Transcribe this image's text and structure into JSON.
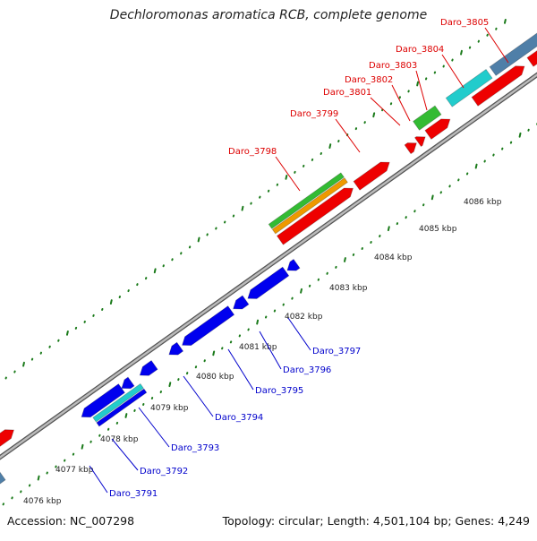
{
  "title": "Dechloromonas aromatica RCB, complete genome",
  "footer": {
    "accession_text": "Accession: NC_007298",
    "summary_text": "Topology: circular; Length: 4,501,104 bp; Genes: 4,249"
  },
  "colors": {
    "forward_label": "#dd0000",
    "reverse_label": "#0000cc",
    "backbone": "#888888",
    "tick": "#1a7a1a",
    "red_gene": "#ee0000",
    "blue_gene": "#0000ee",
    "green_feature": "#33bb33",
    "orange_feature": "#ee9900",
    "cyan_feature": "#22cccc",
    "steelblue_gene": "#4f7fa8"
  },
  "scale_labels": [
    "4076 kbp",
    "4077 kbp",
    "4078 kbp",
    "4079 kbp",
    "4080 kbp",
    "4081 kbp",
    "4082 kbp",
    "4083 kbp",
    "4084 kbp",
    "4085 kbp",
    "4086 kbp"
  ],
  "forward_gene_labels": [
    "Daro_3798",
    "Daro_3799",
    "Daro_3801",
    "Daro_3802",
    "Daro_3803",
    "Daro_3804",
    "Daro_3805"
  ],
  "reverse_gene_labels": [
    "Daro_3791",
    "Daro_3792",
    "Daro_3793",
    "Daro_3794",
    "Daro_3795",
    "Daro_3796",
    "Daro_3797"
  ]
}
